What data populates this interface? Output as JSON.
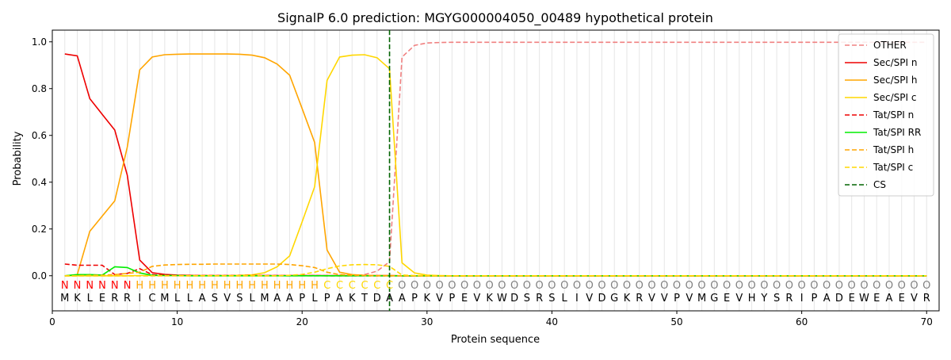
{
  "chart_data": {
    "type": "line",
    "title": "SignalP 6.0 prediction: MGYG000004050_00489 hypothetical protein",
    "xlabel": "Protein sequence",
    "ylabel": "Probability",
    "xlim": [
      0,
      71
    ],
    "ylim": [
      -0.15,
      1.05
    ],
    "x_ticks": [
      0,
      10,
      20,
      30,
      40,
      50,
      60,
      70
    ],
    "y_ticks": [
      0.0,
      0.2,
      0.4,
      0.6,
      0.8,
      1.0
    ],
    "x_tick_labels": [
      "0",
      "10",
      "20",
      "30",
      "40",
      "50",
      "60",
      "70"
    ],
    "y_tick_labels": [
      "0.0",
      "0.2",
      "0.4",
      "0.6",
      "0.8",
      "1.0"
    ],
    "legend_position": "top-right",
    "sequence": [
      "M",
      "K",
      "L",
      "E",
      "R",
      "R",
      "I",
      "C",
      "M",
      "L",
      "L",
      "A",
      "S",
      "V",
      "S",
      "L",
      "M",
      "A",
      "A",
      "P",
      "L",
      "P",
      "A",
      "K",
      "T",
      "D",
      "A",
      "A",
      "P",
      "K",
      "V",
      "P",
      "E",
      "V",
      "K",
      "W",
      "D",
      "S",
      "R",
      "S",
      "L",
      "I",
      "V",
      "D",
      "G",
      "K",
      "R",
      "V",
      "V",
      "P",
      "V",
      "M",
      "G",
      "E",
      "V",
      "H",
      "Y",
      "S",
      "R",
      "I",
      "P",
      "A",
      "D",
      "E",
      "W",
      "E",
      "A",
      "E",
      "V",
      "R"
    ],
    "region_labels": [
      "N",
      "N",
      "N",
      "N",
      "N",
      "N",
      "H",
      "H",
      "H",
      "H",
      "H",
      "H",
      "H",
      "H",
      "H",
      "H",
      "H",
      "H",
      "H",
      "H",
      "H",
      "C",
      "C",
      "C",
      "C",
      "C",
      "C",
      "O",
      "O",
      "O",
      "O",
      "O",
      "O",
      "O",
      "O",
      "O",
      "O",
      "O",
      "O",
      "O",
      "O",
      "O",
      "O",
      "O",
      "O",
      "O",
      "O",
      "O",
      "O",
      "O",
      "O",
      "O",
      "O",
      "O",
      "O",
      "O",
      "O",
      "O",
      "O",
      "O",
      "O",
      "O",
      "O",
      "O",
      "O",
      "O",
      "O",
      "O",
      "O",
      "O"
    ],
    "region_colors": {
      "N": "#ff0000",
      "H": "#ffa500",
      "C": "#ffd700",
      "O": "#808080"
    },
    "cleavage_site": 27,
    "series": [
      {
        "name": "OTHER",
        "color": "#f08080",
        "dash": "dashed",
        "values": [
          0.0,
          0.0,
          0.0,
          0.0,
          0.0,
          0.0,
          0.0,
          0.0,
          0.0,
          0.0,
          0.0,
          0.0,
          0.0,
          0.0,
          0.0,
          0.0,
          0.0,
          0.0,
          0.0,
          0.0,
          0.0,
          0.0,
          0.0,
          0.0,
          0.005,
          0.02,
          0.06,
          0.935,
          0.985,
          0.995,
          0.997,
          0.998,
          0.998,
          0.998,
          0.998,
          0.998,
          0.998,
          0.998,
          0.998,
          0.998,
          0.998,
          0.998,
          0.998,
          0.998,
          0.998,
          0.998,
          0.998,
          0.998,
          0.998,
          0.998,
          0.998,
          0.998,
          0.998,
          0.998,
          0.998,
          0.998,
          0.998,
          0.998,
          0.998,
          0.998,
          0.998,
          0.998,
          0.998,
          0.998,
          0.998,
          0.998,
          0.998,
          0.998,
          0.998,
          0.998
        ]
      },
      {
        "name": "Sec/SPI n",
        "color": "#ee0000",
        "dash": "solid",
        "values": [
          0.948,
          0.94,
          0.757,
          0.69,
          0.623,
          0.43,
          0.067,
          0.013,
          0.006,
          0.003,
          0.002,
          0.001,
          0.001,
          0.001,
          0.001,
          0.001,
          0.001,
          0.001,
          0.001,
          0.001,
          0.001,
          0.001,
          0.001,
          0.001,
          0.001,
          0.001,
          0.001,
          0.0,
          0.0,
          0.0,
          0.0,
          0.0,
          0.0,
          0.0,
          0.0,
          0.0,
          0.0,
          0.0,
          0.0,
          0.0,
          0.0,
          0.0,
          0.0,
          0.0,
          0.0,
          0.0,
          0.0,
          0.0,
          0.0,
          0.0,
          0.0,
          0.0,
          0.0,
          0.0,
          0.0,
          0.0,
          0.0,
          0.0,
          0.0,
          0.0,
          0.0,
          0.0,
          0.0,
          0.0,
          0.0,
          0.0,
          0.0,
          0.0,
          0.0,
          0.0
        ]
      },
      {
        "name": "Sec/SPI h",
        "color": "#ffa500",
        "dash": "solid",
        "values": [
          0.0,
          0.005,
          0.19,
          0.255,
          0.32,
          0.55,
          0.88,
          0.935,
          0.945,
          0.947,
          0.948,
          0.948,
          0.948,
          0.948,
          0.947,
          0.943,
          0.932,
          0.905,
          0.857,
          0.715,
          0.57,
          0.11,
          0.015,
          0.005,
          0.002,
          0.001,
          0.001,
          0.0,
          0.0,
          0.0,
          0.0,
          0.0,
          0.0,
          0.0,
          0.0,
          0.0,
          0.0,
          0.0,
          0.0,
          0.0,
          0.0,
          0.0,
          0.0,
          0.0,
          0.0,
          0.0,
          0.0,
          0.0,
          0.0,
          0.0,
          0.0,
          0.0,
          0.0,
          0.0,
          0.0,
          0.0,
          0.0,
          0.0,
          0.0,
          0.0,
          0.0,
          0.0,
          0.0,
          0.0,
          0.0,
          0.0,
          0.0,
          0.0,
          0.0,
          0.0
        ]
      },
      {
        "name": "Sec/SPI c",
        "color": "#ffd700",
        "dash": "solid",
        "values": [
          0.0,
          0.0,
          0.0,
          0.0,
          0.0,
          0.0,
          0.001,
          0.001,
          0.001,
          0.001,
          0.001,
          0.001,
          0.001,
          0.001,
          0.002,
          0.004,
          0.013,
          0.038,
          0.085,
          0.23,
          0.38,
          0.835,
          0.935,
          0.943,
          0.945,
          0.932,
          0.885,
          0.055,
          0.012,
          0.003,
          0.001,
          0.0,
          0.0,
          0.0,
          0.0,
          0.0,
          0.0,
          0.0,
          0.0,
          0.0,
          0.0,
          0.0,
          0.0,
          0.0,
          0.0,
          0.0,
          0.0,
          0.0,
          0.0,
          0.0,
          0.0,
          0.0,
          0.0,
          0.0,
          0.0,
          0.0,
          0.0,
          0.0,
          0.0,
          0.0,
          0.0,
          0.0,
          0.0,
          0.0,
          0.0,
          0.0,
          0.0,
          0.0,
          0.0,
          0.0
        ]
      },
      {
        "name": "Tat/SPI n",
        "color": "#ee0000",
        "dash": "dashed",
        "values": [
          0.05,
          0.045,
          0.045,
          0.045,
          0.005,
          0.01,
          0.03,
          0.005,
          0.002,
          0.001,
          0.001,
          0.001,
          0.001,
          0.001,
          0.001,
          0.001,
          0.001,
          0.001,
          0.001,
          0.001,
          0.001,
          0.0,
          0.0,
          0.0,
          0.0,
          0.0,
          0.0,
          0.0,
          0.0,
          0.0,
          0.0,
          0.0,
          0.0,
          0.0,
          0.0,
          0.0,
          0.0,
          0.0,
          0.0,
          0.0,
          0.0,
          0.0,
          0.0,
          0.0,
          0.0,
          0.0,
          0.0,
          0.0,
          0.0,
          0.0,
          0.0,
          0.0,
          0.0,
          0.0,
          0.0,
          0.0,
          0.0,
          0.0,
          0.0,
          0.0,
          0.0,
          0.0,
          0.0,
          0.0,
          0.0,
          0.0,
          0.0,
          0.0,
          0.0,
          0.0
        ]
      },
      {
        "name": "Tat/SPI RR",
        "color": "#00ee00",
        "dash": "solid",
        "values": [
          0.0,
          0.005,
          0.005,
          0.003,
          0.038,
          0.035,
          0.012,
          0.002,
          0.001,
          0.001,
          0.0,
          0.0,
          0.0,
          0.0,
          0.0,
          0.0,
          0.0,
          0.0,
          0.0,
          0.0,
          0.0,
          0.0,
          0.0,
          0.0,
          0.0,
          0.0,
          0.0,
          0.0,
          0.0,
          0.0,
          0.0,
          0.0,
          0.0,
          0.0,
          0.0,
          0.0,
          0.0,
          0.0,
          0.0,
          0.0,
          0.0,
          0.0,
          0.0,
          0.0,
          0.0,
          0.0,
          0.0,
          0.0,
          0.0,
          0.0,
          0.0,
          0.0,
          0.0,
          0.0,
          0.0,
          0.0,
          0.0,
          0.0,
          0.0,
          0.0,
          0.0,
          0.0,
          0.0,
          0.0,
          0.0,
          0.0,
          0.0,
          0.0,
          0.0,
          0.0
        ]
      },
      {
        "name": "Tat/SPI h",
        "color": "#ffa500",
        "dash": "dashed",
        "values": [
          0.0,
          0.0,
          0.002,
          0.002,
          0.005,
          0.01,
          0.015,
          0.04,
          0.046,
          0.048,
          0.049,
          0.049,
          0.05,
          0.05,
          0.05,
          0.05,
          0.05,
          0.05,
          0.048,
          0.043,
          0.035,
          0.015,
          0.005,
          0.002,
          0.001,
          0.0,
          0.0,
          0.0,
          0.0,
          0.0,
          0.0,
          0.0,
          0.0,
          0.0,
          0.0,
          0.0,
          0.0,
          0.0,
          0.0,
          0.0,
          0.0,
          0.0,
          0.0,
          0.0,
          0.0,
          0.0,
          0.0,
          0.0,
          0.0,
          0.0,
          0.0,
          0.0,
          0.0,
          0.0,
          0.0,
          0.0,
          0.0,
          0.0,
          0.0,
          0.0,
          0.0,
          0.0,
          0.0,
          0.0,
          0.0,
          0.0,
          0.0,
          0.0,
          0.0,
          0.0
        ]
      },
      {
        "name": "Tat/SPI c",
        "color": "#ffd700",
        "dash": "dashed",
        "values": [
          0.0,
          0.0,
          0.0,
          0.0,
          0.0,
          0.0,
          0.0,
          0.0,
          0.0,
          0.0,
          0.0,
          0.0,
          0.0,
          0.0,
          0.0,
          0.0,
          0.0,
          0.0,
          0.002,
          0.006,
          0.015,
          0.03,
          0.042,
          0.047,
          0.048,
          0.047,
          0.04,
          0.003,
          0.001,
          0.0,
          0.0,
          0.0,
          0.0,
          0.0,
          0.0,
          0.0,
          0.0,
          0.0,
          0.0,
          0.0,
          0.0,
          0.0,
          0.0,
          0.0,
          0.0,
          0.0,
          0.0,
          0.0,
          0.0,
          0.0,
          0.0,
          0.0,
          0.0,
          0.0,
          0.0,
          0.0,
          0.0,
          0.0,
          0.0,
          0.0,
          0.0,
          0.0,
          0.0,
          0.0,
          0.0,
          0.0,
          0.0,
          0.0,
          0.0,
          0.0
        ]
      },
      {
        "name": "CS",
        "color": "#006400",
        "dash": "dashed",
        "x": 27
      }
    ]
  }
}
